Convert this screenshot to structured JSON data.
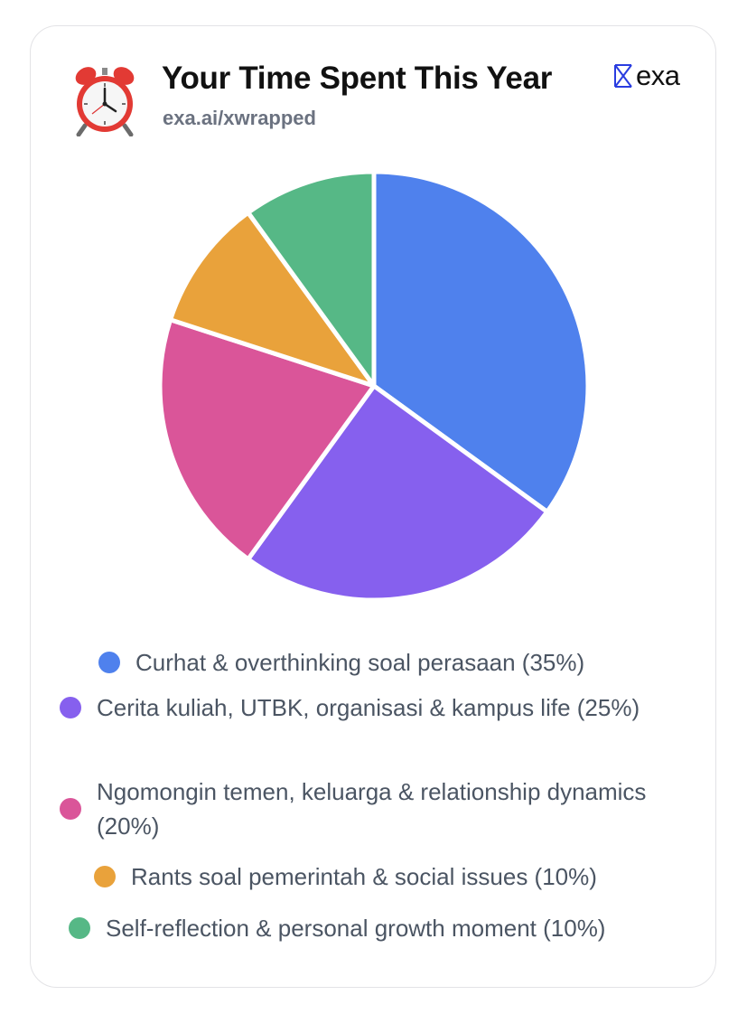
{
  "header": {
    "title": "Your Time Spent This Year",
    "subtitle": "exa.ai/xwrapped",
    "icon": "alarm-clock-icon",
    "brand": "exa"
  },
  "chart_data": {
    "type": "pie",
    "title": "Your Time Spent This Year",
    "categories": [
      "Curhat & overthinking soal perasaan (35%)",
      "Cerita kuliah, UTBK, organisasi & kampus life (25%)",
      "Ngomongin temen, keluarga & relationship dynamics (20%)",
      "Rants soal pemerintah & social issues (10%)",
      "Self-reflection & personal growth moment (10%)"
    ],
    "values": [
      35,
      25,
      20,
      10,
      10
    ],
    "colors": [
      "#4f81ed",
      "#8660ee",
      "#da5599",
      "#e9a23b",
      "#56b886"
    ],
    "legend_position": "bottom",
    "start_angle": "12 o'clock, clockwise"
  }
}
